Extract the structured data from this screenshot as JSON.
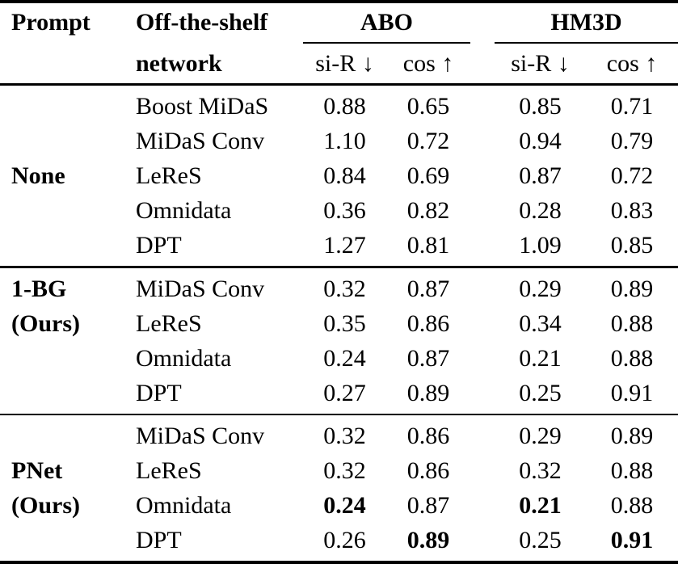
{
  "colors": {
    "text": "#000000",
    "background": "#ffffff",
    "rule": "#000000"
  },
  "table": {
    "header": {
      "prompt": "Prompt",
      "network_line1": "Off-the-shelf",
      "network_line2": "network",
      "groups": [
        {
          "label": "ABO"
        },
        {
          "label": "HM3D"
        }
      ],
      "subheaders": [
        "si-R ↓",
        "cos ↑",
        "si-R ↓",
        "cos ↑"
      ]
    },
    "sections": [
      {
        "prompt_lines": [
          "None"
        ],
        "rows": [
          {
            "network": "Boost MiDaS",
            "cells": [
              {
                "v": "0.88",
                "b": false
              },
              {
                "v": "0.65",
                "b": false
              },
              {
                "v": "0.85",
                "b": false
              },
              {
                "v": "0.71",
                "b": false
              }
            ]
          },
          {
            "network": "MiDaS Conv",
            "cells": [
              {
                "v": "1.10",
                "b": false
              },
              {
                "v": "0.72",
                "b": false
              },
              {
                "v": "0.94",
                "b": false
              },
              {
                "v": "0.79",
                "b": false
              }
            ]
          },
          {
            "network": "LeReS",
            "cells": [
              {
                "v": "0.84",
                "b": false
              },
              {
                "v": "0.69",
                "b": false
              },
              {
                "v": "0.87",
                "b": false
              },
              {
                "v": "0.72",
                "b": false
              }
            ]
          },
          {
            "network": "Omnidata",
            "cells": [
              {
                "v": "0.36",
                "b": false
              },
              {
                "v": "0.82",
                "b": false
              },
              {
                "v": "0.28",
                "b": false
              },
              {
                "v": "0.83",
                "b": false
              }
            ]
          },
          {
            "network": "DPT",
            "cells": [
              {
                "v": "1.27",
                "b": false
              },
              {
                "v": "0.81",
                "b": false
              },
              {
                "v": "1.09",
                "b": false
              },
              {
                "v": "0.85",
                "b": false
              }
            ]
          }
        ]
      },
      {
        "prompt_lines": [
          "1-BG",
          "(Ours)"
        ],
        "rows": [
          {
            "network": "MiDaS Conv",
            "cells": [
              {
                "v": "0.32",
                "b": false
              },
              {
                "v": "0.87",
                "b": false
              },
              {
                "v": "0.29",
                "b": false
              },
              {
                "v": "0.89",
                "b": false
              }
            ]
          },
          {
            "network": "LeReS",
            "cells": [
              {
                "v": "0.35",
                "b": false
              },
              {
                "v": "0.86",
                "b": false
              },
              {
                "v": "0.34",
                "b": false
              },
              {
                "v": "0.88",
                "b": false
              }
            ]
          },
          {
            "network": "Omnidata",
            "cells": [
              {
                "v": "0.24",
                "b": false
              },
              {
                "v": "0.87",
                "b": false
              },
              {
                "v": "0.21",
                "b": false
              },
              {
                "v": "0.88",
                "b": false
              }
            ]
          },
          {
            "network": "DPT",
            "cells": [
              {
                "v": "0.27",
                "b": false
              },
              {
                "v": "0.89",
                "b": false
              },
              {
                "v": "0.25",
                "b": false
              },
              {
                "v": "0.91",
                "b": false
              }
            ]
          }
        ]
      },
      {
        "prompt_lines": [
          "PNet",
          "(Ours)"
        ],
        "rows": [
          {
            "network": "MiDaS Conv",
            "cells": [
              {
                "v": "0.32",
                "b": false
              },
              {
                "v": "0.86",
                "b": false
              },
              {
                "v": "0.29",
                "b": false
              },
              {
                "v": "0.89",
                "b": false
              }
            ]
          },
          {
            "network": "LeReS",
            "cells": [
              {
                "v": "0.32",
                "b": false
              },
              {
                "v": "0.86",
                "b": false
              },
              {
                "v": "0.32",
                "b": false
              },
              {
                "v": "0.88",
                "b": false
              }
            ]
          },
          {
            "network": "Omnidata",
            "cells": [
              {
                "v": "0.24",
                "b": true
              },
              {
                "v": "0.87",
                "b": false
              },
              {
                "v": "0.21",
                "b": true
              },
              {
                "v": "0.88",
                "b": false
              }
            ]
          },
          {
            "network": "DPT",
            "cells": [
              {
                "v": "0.26",
                "b": false
              },
              {
                "v": "0.89",
                "b": true
              },
              {
                "v": "0.25",
                "b": false
              },
              {
                "v": "0.91",
                "b": true
              }
            ]
          }
        ]
      }
    ]
  }
}
